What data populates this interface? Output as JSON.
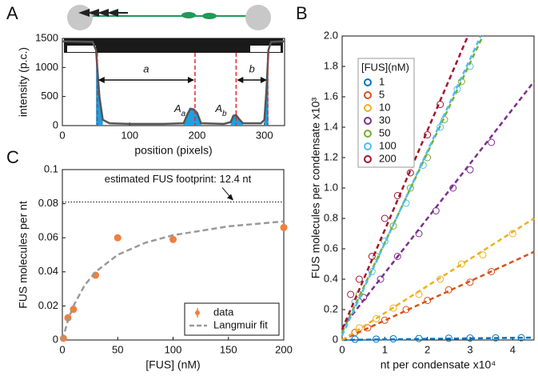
{
  "chart_data": [
    {
      "type": "line",
      "panel_label": "A",
      "xlabel": "position (pixels)",
      "ylabel": "intensity (p.c.)",
      "x": [
        0,
        45,
        50,
        55,
        60,
        70,
        100,
        150,
        180,
        186,
        190,
        195,
        200,
        206,
        240,
        250,
        254,
        258,
        262,
        268,
        295,
        300,
        303,
        306,
        310,
        330
      ],
      "values": [
        1450,
        1440,
        1300,
        500,
        100,
        40,
        30,
        30,
        40,
        200,
        290,
        280,
        220,
        40,
        30,
        60,
        170,
        180,
        120,
        40,
        40,
        100,
        600,
        1300,
        1440,
        1450
      ],
      "color": "#555555",
      "fill_color": "#1ba1e2",
      "marker_color": "#e8282b",
      "markers": [
        52,
        197,
        258,
        305
      ],
      "annotations": [
        "a",
        "b",
        {
          "text": "A",
          "sub": "a"
        },
        {
          "text": "A",
          "sub": "b"
        }
      ],
      "xlim": [
        0,
        330
      ],
      "xticks": [
        0,
        100,
        200,
        300
      ],
      "ylim": [
        0,
        1500
      ],
      "yticks": [
        0,
        500,
        1000,
        1500
      ]
    },
    {
      "type": "scatter",
      "panel_label": "B",
      "xlabel": "nt per condensate x10⁴",
      "ylabel": "FUS molecules per condensate x10³",
      "legend_title": "[FUS](nM)",
      "legend": "upper-left",
      "xlim": [
        0,
        4.5
      ],
      "xticks": [
        0,
        1,
        2,
        3,
        4
      ],
      "ylim": [
        0,
        2.0
      ],
      "yticks": [
        0,
        0.2,
        0.4,
        0.6,
        0.8,
        {
          "value": 1.0,
          "label": "1.0"
        },
        1.2,
        1.4,
        1.6,
        1.8,
        {
          "value": 2.0,
          "label": "2.0"
        }
      ],
      "series": [
        {
          "name": "1",
          "color": "#0072bd",
          "x": [
            0.3,
            0.8,
            1.2,
            1.8,
            2.5,
            3.0,
            3.6,
            4.2
          ],
          "values": [
            0.005,
            0.006,
            0.008,
            0.01,
            0.012,
            0.013,
            0.014,
            0.015
          ],
          "fit": {
            "x": [
              0,
              4.5
            ],
            "values": [
              0,
              0.016
            ]
          }
        },
        {
          "name": "5",
          "color": "#d95319",
          "x": [
            0.3,
            0.6,
            1.0,
            1.5,
            2.0,
            2.5,
            3.0,
            3.5
          ],
          "values": [
            0.05,
            0.08,
            0.13,
            0.2,
            0.26,
            0.33,
            0.38,
            0.45
          ],
          "fit": {
            "x": [
              0,
              4.5
            ],
            "values": [
              0,
              0.58
            ]
          }
        },
        {
          "name": "10",
          "color": "#edb120",
          "x": [
            0.4,
            0.8,
            1.2,
            1.8,
            2.3,
            2.8,
            3.3,
            4.0
          ],
          "values": [
            0.08,
            0.14,
            0.21,
            0.3,
            0.4,
            0.5,
            0.56,
            0.7
          ],
          "fit": {
            "x": [
              0,
              4.5
            ],
            "values": [
              0,
              0.8
            ]
          }
        },
        {
          "name": "30",
          "color": "#7e2f8e",
          "x": [
            0.5,
            0.9,
            1.3,
            1.8,
            2.2,
            2.6,
            3.0,
            3.5
          ],
          "values": [
            0.28,
            0.4,
            0.55,
            0.7,
            0.85,
            1.0,
            1.12,
            1.3
          ],
          "fit": {
            "x": [
              0,
              4.5
            ],
            "values": [
              0.08,
              1.7
            ]
          }
        },
        {
          "name": "50",
          "color": "#77ac30",
          "x": [
            0.4,
            0.8,
            1.2,
            1.6,
            2.0,
            2.4,
            2.8
          ],
          "values": [
            0.3,
            0.55,
            0.75,
            1.0,
            1.2,
            1.45,
            1.7
          ],
          "fit": {
            "x": [
              0,
              3.3
            ],
            "values": [
              0.05,
              2.0
            ]
          }
        },
        {
          "name": "100",
          "color": "#4dbeee",
          "x": [
            0.3,
            0.7,
            1.0,
            1.5,
            1.9,
            2.3,
            2.7,
            3.0
          ],
          "values": [
            0.25,
            0.45,
            0.65,
            0.9,
            1.15,
            1.4,
            1.65,
            1.8
          ],
          "fit": {
            "x": [
              0,
              3.25
            ],
            "values": [
              0.03,
              2.0
            ]
          }
        },
        {
          "name": "200",
          "color": "#a2142f",
          "x": [
            0.2,
            0.4,
            0.7,
            1.0,
            1.3,
            1.6,
            2.0,
            2.3
          ],
          "values": [
            0.3,
            0.4,
            0.55,
            0.8,
            0.95,
            1.1,
            1.35,
            1.55
          ],
          "fit": {
            "x": [
              0,
              2.95
            ],
            "values": [
              0.07,
              2.0
            ]
          }
        }
      ]
    },
    {
      "type": "errorbar",
      "panel_label": "C",
      "xlabel": "[FUS] (nM)",
      "ylabel": "FUS molecules per nt",
      "xlim": [
        0,
        200
      ],
      "xticks": [
        0,
        50,
        100,
        150,
        200
      ],
      "ylim": [
        0,
        0.1
      ],
      "yticks": [
        0,
        0.02,
        0.04,
        0.06,
        0.08,
        0.1
      ],
      "reference_line": 0.081,
      "reference_label": "estimated FUS footprint: 12.4 nt",
      "legend": "lower-right",
      "series": [
        {
          "name": "data",
          "color": "#f07f3c",
          "x": [
            1,
            5,
            10,
            30,
            50,
            100,
            200
          ],
          "values": [
            0.001,
            0.013,
            0.018,
            0.038,
            0.06,
            0.059,
            0.066
          ],
          "errors": [
            0.001,
            0.002,
            0.002,
            0.001,
            0.002,
            0.002,
            0.002
          ]
        },
        {
          "name": "Langmuir fit",
          "color": "#999999",
          "x": [
            0,
            5,
            10,
            20,
            30,
            50,
            75,
            100,
            150,
            200
          ],
          "values": [
            0,
            0.0114,
            0.02,
            0.032,
            0.04,
            0.05,
            0.0571,
            0.0615,
            0.0667,
            0.0696
          ]
        }
      ]
    }
  ]
}
